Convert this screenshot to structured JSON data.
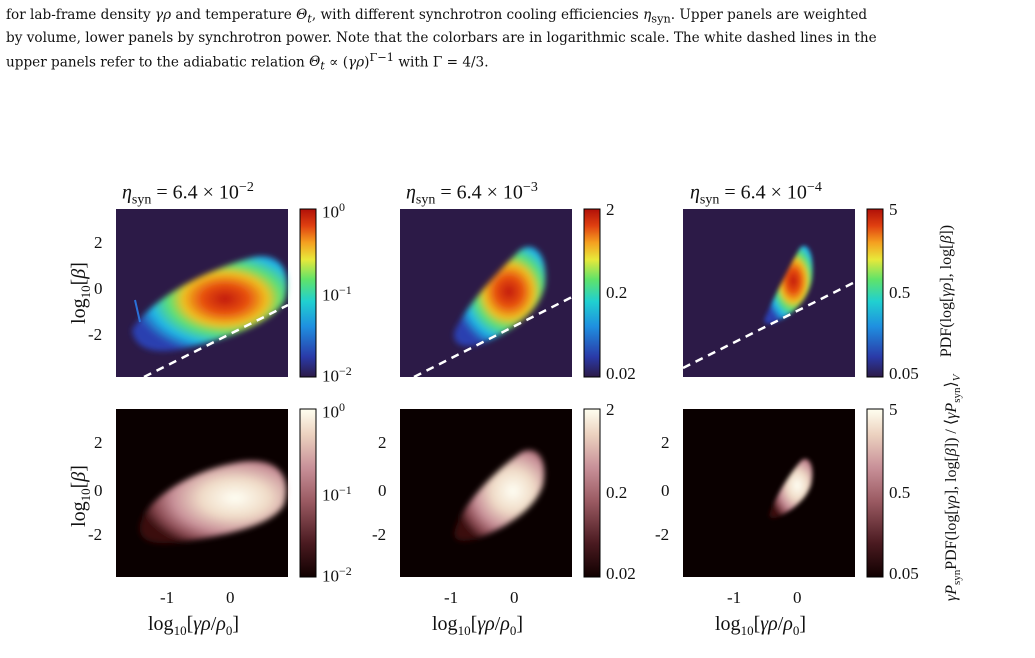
{
  "caption": {
    "line1": "for lab-frame density γρ and temperature Θt, with different synchrotron cooling efficiencies ηsyn. Upper panels are weighted",
    "line2": "by volume, lower panels by synchrotron power. Note that the colorbars are in logarithmic scale. The white dashed lines in the",
    "line3": "upper panels refer to the adiabatic relation Θt ∝ (γρ)^(Γ−1) with Γ = 4/3."
  },
  "figure": {
    "titles": [
      "ηsyn = 6.4 × 10^−2",
      "ηsyn = 6.4 × 10^−3",
      "ηsyn = 6.4 × 10^−4"
    ],
    "ylabel": "log10[β]",
    "xlabel": "log10[γρ/ρ0]",
    "cb_label_top": "PDF(log[γρ], log[β])",
    "cb_label_bottom": "γPsyn PDF(log[γρ], log[β]) / ⟨γPsyn⟩V",
    "y_ticks": [
      "2",
      "0",
      "-2"
    ],
    "x_ticks": [
      "-1",
      "0"
    ],
    "colorbar_ticks": [
      [
        "10^0",
        "10^−1",
        "10^−2"
      ],
      [
        "2",
        "0.2",
        "0.02"
      ],
      [
        "5",
        "0.5",
        "0.05"
      ]
    ],
    "colors": {
      "panel_bg_top": "#2c1a47",
      "panel_bg_bottom": "#0a0000",
      "dashed": "#ffffff"
    }
  }
}
